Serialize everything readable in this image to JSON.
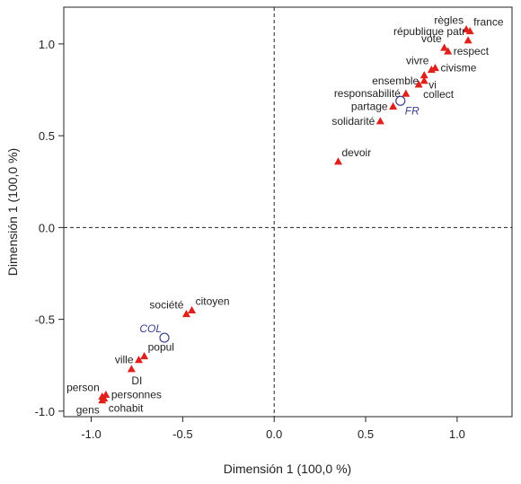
{
  "chart_data": {
    "type": "scatter",
    "xlabel": "Dimensión 1 (100,0 %)",
    "ylabel": "Dimensión 1 (100,0 %)",
    "xlim": [
      -1.15,
      1.3
    ],
    "ylim": [
      -1.03,
      1.2
    ],
    "xticks": [
      -1.0,
      -0.5,
      0.0,
      0.5,
      1.0
    ],
    "xtick_labels": [
      "-1.0",
      "-0.5",
      "0.0",
      "0.5",
      "1.0"
    ],
    "yticks": [
      -1.0,
      -0.5,
      0.0,
      0.5,
      1.0
    ],
    "ytick_labels": [
      "-1.0",
      "-0.5",
      "0.0",
      "0.5",
      "1.0"
    ],
    "reference_lines": {
      "x": 0,
      "y": 0,
      "style": "dashed"
    },
    "grid": false,
    "colors": {
      "active": "#e0201b",
      "supplementary": "#3a3f8f",
      "axis": "#222222"
    },
    "active_points": [
      {
        "label": "règles",
        "x": 1.05,
        "y": 1.08,
        "anchor": "end-above"
      },
      {
        "label": "france",
        "x": 1.07,
        "y": 1.07,
        "anchor": "start-above"
      },
      {
        "label": "république patr",
        "x": 1.06,
        "y": 1.02,
        "anchor": "end-above"
      },
      {
        "label": "vote",
        "x": 0.93,
        "y": 0.98,
        "anchor": "end-above"
      },
      {
        "label": "respect",
        "x": 0.95,
        "y": 0.96,
        "anchor": "start"
      },
      {
        "label": "vivre",
        "x": 0.86,
        "y": 0.86,
        "anchor": "end-above"
      },
      {
        "label": "civisme",
        "x": 0.88,
        "y": 0.87,
        "anchor": "start"
      },
      {
        "label": "ensemble",
        "x": 0.82,
        "y": 0.8,
        "anchor": "end"
      },
      {
        "label": "vi",
        "x": 0.82,
        "y": 0.83,
        "anchor": "start-below"
      },
      {
        "label": "collect",
        "x": 0.79,
        "y": 0.78,
        "anchor": "start-below"
      },
      {
        "label": "responsabilité",
        "x": 0.72,
        "y": 0.73,
        "anchor": "end"
      },
      {
        "label": "partage",
        "x": 0.65,
        "y": 0.66,
        "anchor": "end"
      },
      {
        "label": "solidarité",
        "x": 0.58,
        "y": 0.58,
        "anchor": "end"
      },
      {
        "label": "devoir",
        "x": 0.35,
        "y": 0.36,
        "anchor": "start-above"
      },
      {
        "label": "citoyen",
        "x": -0.45,
        "y": -0.45,
        "anchor": "start-above"
      },
      {
        "label": "société",
        "x": -0.48,
        "y": -0.47,
        "anchor": "end-above"
      },
      {
        "label": "popul",
        "x": -0.71,
        "y": -0.7,
        "anchor": "start-above"
      },
      {
        "label": "ville",
        "x": -0.74,
        "y": -0.72,
        "anchor": "end"
      },
      {
        "label": "DI",
        "x": -0.78,
        "y": -0.77,
        "anchor": "below"
      },
      {
        "label": "person",
        "x": -0.94,
        "y": -0.92,
        "anchor": "end-above"
      },
      {
        "label": "personnes",
        "x": -0.92,
        "y": -0.91,
        "anchor": "start"
      },
      {
        "label": "gens",
        "x": -0.94,
        "y": -0.94,
        "anchor": "end-below"
      },
      {
        "label": "cohabit",
        "x": -0.93,
        "y": -0.93,
        "anchor": "start-below"
      }
    ],
    "supplementary_points": [
      {
        "label": "FR",
        "x": 0.69,
        "y": 0.69,
        "anchor": "start-below"
      },
      {
        "label": "COL",
        "x": -0.6,
        "y": -0.6,
        "anchor": "end-above"
      }
    ]
  }
}
